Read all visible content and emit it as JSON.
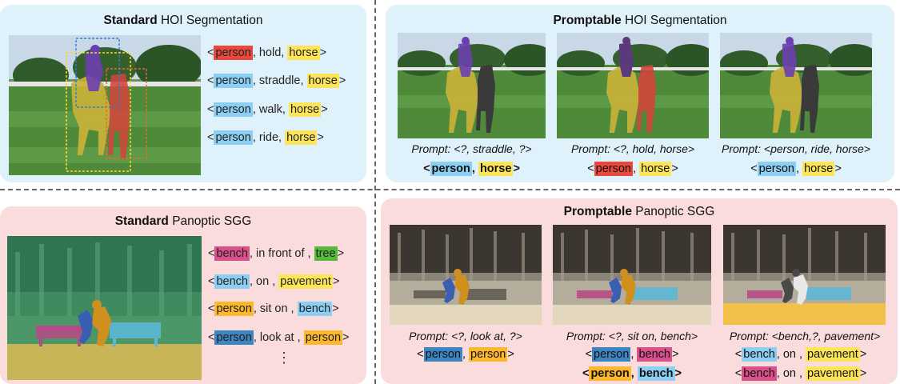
{
  "top_left": {
    "title_bold": "Standard",
    "title_rest": " HOI Segmentation",
    "triplets": [
      {
        "open": "<",
        "subject": "person",
        "relation": ", hold, ",
        "object": "horse",
        "close": ">",
        "subject_color": "#e8493c",
        "object_color": "#fde55a"
      },
      {
        "open": "<",
        "subject": "person",
        "relation": ", straddle, ",
        "object": "horse",
        "close": ">",
        "subject_color": "#8ccff3",
        "object_color": "#fde55a"
      },
      {
        "open": "<",
        "subject": "person",
        "relation": ", walk, ",
        "object": "horse",
        "close": ">",
        "subject_color": "#8ccff3",
        "object_color": "#fde55a"
      },
      {
        "open": "<",
        "subject": "person",
        "relation": ", ride, ",
        "object": "horse",
        "close": ">",
        "subject_color": "#8ccff3",
        "object_color": "#fde55a"
      }
    ]
  },
  "top_right": {
    "title_bold": "Promptable",
    "title_rest": " HOI Segmentation",
    "prompts": [
      {
        "prompt": "Prompt: <?, straddle, ?>",
        "answer": {
          "open": "<",
          "a": "person",
          "sep": ", ",
          "b": "horse",
          "close": ">"
        }
      },
      {
        "prompt": "Prompt: <?, hold, horse>",
        "answer": {
          "open": "<",
          "a": "person",
          "sep": ", ",
          "b": "horse",
          "close": ">"
        }
      },
      {
        "prompt": "Prompt: <person, ride, horse>",
        "answer": {
          "open": "<",
          "a": "person",
          "sep": ", ",
          "b": "horse",
          "close": ">"
        }
      }
    ]
  },
  "bottom_left": {
    "title_bold": "Standard",
    "title_rest": " Panoptic SGG",
    "triplets": [
      {
        "open": "<",
        "subject": "bench",
        "relation": ", in front of , ",
        "object": "tree",
        "close": ">"
      },
      {
        "open": "<",
        "subject": "bench",
        "relation": ", on , ",
        "object": "pavement",
        "close": ">"
      },
      {
        "open": "<",
        "subject": "person",
        "relation": ", sit on , ",
        "object": "bench",
        "close": ">"
      },
      {
        "open": "<",
        "subject": "person",
        "relation": ", look at , ",
        "object": "person",
        "close": ">"
      }
    ],
    "ellipsis": "⋮"
  },
  "bottom_right": {
    "title_bold": "Promptable",
    "title_rest": " Panoptic SGG",
    "prompts": [
      {
        "prompt": "Prompt: <?, look at, ?>",
        "answers": [
          {
            "open": "<",
            "a": "person",
            "sep": ", ",
            "b": "person",
            "close": ">"
          }
        ]
      },
      {
        "prompt": "Prompt: <?, sit on, bench>",
        "answers": [
          {
            "open": "<",
            "a": "person",
            "sep": ", ",
            "b": "bench",
            "close": ">"
          },
          {
            "open": "<",
            "a": "person",
            "sep": ", ",
            "b": "bench",
            "close": ">"
          }
        ]
      },
      {
        "prompt": "Prompt: <bench,?, pavement>",
        "answers": [
          {
            "open": "<",
            "a": "bench",
            "sep": ", on , ",
            "b": "pavement",
            "close": ">"
          },
          {
            "open": "<",
            "a": "bench",
            "sep": ", on , ",
            "b": "pavement",
            "close": ">"
          }
        ]
      }
    ]
  },
  "colors": {
    "panel_blue": "#dff1fa",
    "panel_pink": "#fadcdc",
    "red": "#e8493c",
    "yellow": "#fde55a",
    "light_blue": "#8ccff3",
    "pink": "#d9508a",
    "green": "#55b93a",
    "dark_blue": "#3d85c0",
    "orange": "#fbb82f"
  }
}
